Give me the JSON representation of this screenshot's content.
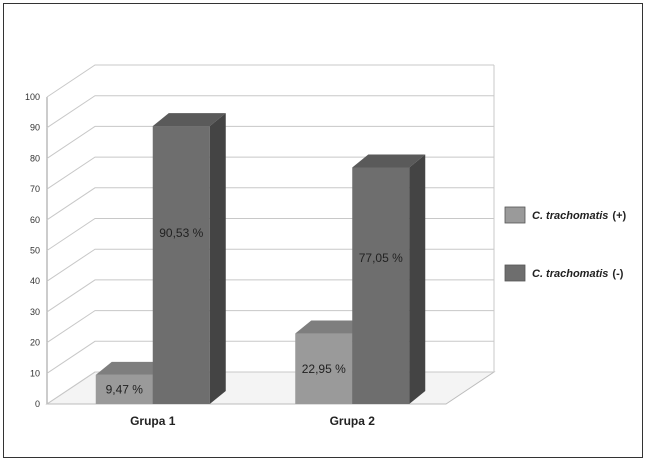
{
  "chart_data": {
    "type": "bar",
    "categories": [
      "Grupa 1",
      "Grupa 2"
    ],
    "series": [
      {
        "legend_name": "C. trachomatis",
        "legend_sign": "(+)",
        "color": "#9a9a9a",
        "values": [
          9.47,
          22.95
        ],
        "labels": [
          "9,47 %",
          "22,95 %"
        ]
      },
      {
        "legend_name": "C. trachomatis",
        "legend_sign": "(-)",
        "color": "#6e6e6e",
        "values": [
          90.53,
          77.05
        ],
        "labels": [
          "90,53 %",
          "77,05 %"
        ]
      }
    ],
    "ylim": [
      0,
      100
    ],
    "yticks": [
      0,
      10,
      20,
      30,
      40,
      50,
      60,
      70,
      80,
      90,
      100
    ],
    "grid": true,
    "three_d": true,
    "legend_position": "right"
  }
}
